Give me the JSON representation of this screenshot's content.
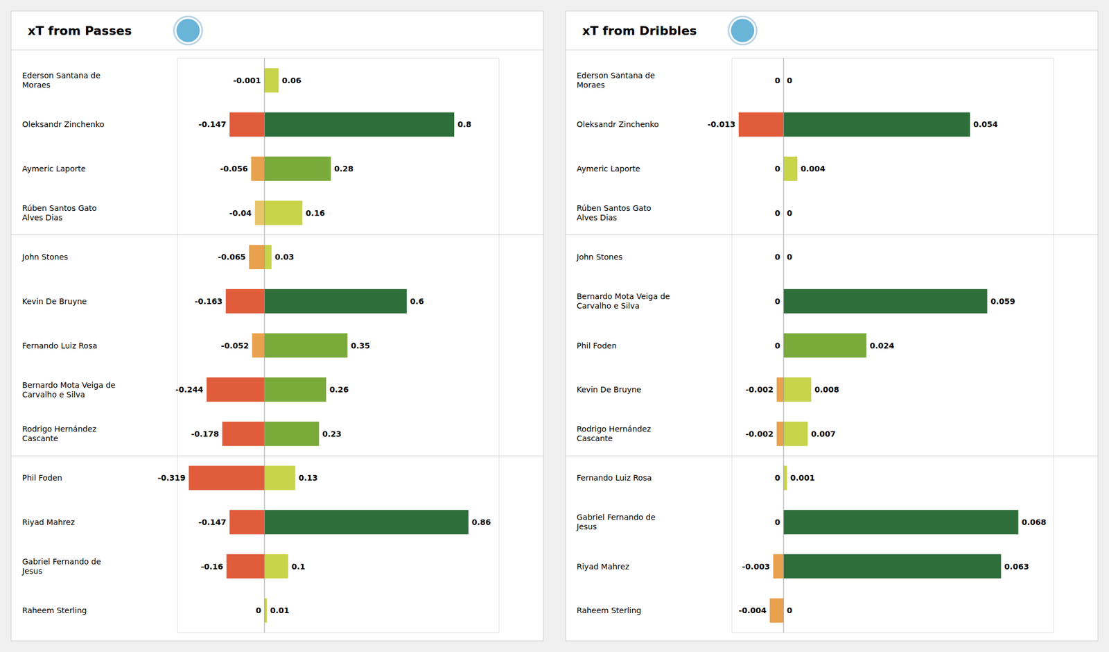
{
  "chart_data": [
    {
      "type": "bar",
      "orientation": "horizontal",
      "title": "xT from Passes",
      "categories": [
        "Ederson Santana de\nMoraes",
        "Oleksandr Zinchenko",
        "Aymeric  Laporte",
        "Rúben  Santos Gato\nAlves Dias",
        "John Stones",
        "Kevin De Bruyne",
        "Fernando Luiz Rosa",
        "Bernardo Mota Veiga de\nCarvalho e Silva",
        "Rodrigo Hernández\nCascante",
        "Phil Foden",
        "Riyad Mahrez",
        "Gabriel Fernando de\nJesus",
        "Raheem Sterling"
      ],
      "series": [
        {
          "values": [
            -0.001,
            -0.147,
            -0.056,
            -0.04,
            -0.065,
            -0.163,
            -0.052,
            -0.244,
            -0.178,
            -0.319,
            -0.147,
            -0.16,
            0
          ],
          "colors": [
            "#e8c46a",
            "#e05c3a",
            "#e8a14e",
            "#e8c46a",
            "#e8a14e",
            "#e05c3a",
            "#e8a14e",
            "#e05c3a",
            "#e05c3a",
            "#e05c3a",
            "#e05c3a",
            "#e05c3a",
            "#e8c46a"
          ]
        },
        {
          "values": [
            0.06,
            0.8,
            0.28,
            0.16,
            0.03,
            0.6,
            0.35,
            0.26,
            0.23,
            0.13,
            0.86,
            0.1,
            0.01
          ],
          "colors": [
            "#c8d44a",
            "#2d6e3a",
            "#7aaa3a",
            "#c8d44a",
            "#c8d44a",
            "#2d6e3a",
            "#7aaa3a",
            "#7aaa3a",
            "#7aaa3a",
            "#c8d44a",
            "#2d6e3a",
            "#c8d44a",
            "#c8d44a"
          ]
        }
      ],
      "xlim": [
        -0.36685,
        0.989
      ],
      "stacked": false,
      "data_labels": true,
      "tick_labels": false,
      "grid": false
    },
    {
      "type": "bar",
      "orientation": "horizontal",
      "title": "xT from Dribbles",
      "categories": [
        "Ederson Santana de\nMoraes",
        "Oleksandr Zinchenko",
        "Aymeric  Laporte",
        "Rúben  Santos Gato\nAlves Dias",
        "John Stones",
        "Bernardo Mota Veiga de\nCarvalho e Silva",
        "Phil Foden",
        "Kevin De Bruyne",
        "Rodrigo Hernández\nCascante",
        "Fernando Luiz Rosa",
        "Gabriel Fernando de\nJesus",
        "Riyad Mahrez",
        "Raheem Sterling"
      ],
      "series": [
        {
          "values": [
            0,
            -0.013,
            0,
            0,
            0,
            0,
            0,
            -0.002,
            -0.002,
            0,
            0,
            -0.003,
            -0.004
          ],
          "colors": [
            "#e8c46a",
            "#e05c3a",
            "#e8c46a",
            "#e8c46a",
            "#e8c46a",
            "#e8c46a",
            "#e8c46a",
            "#e8a14e",
            "#e8a14e",
            "#e8c46a",
            "#e8c46a",
            "#e8a14e",
            "#e8a14e"
          ]
        },
        {
          "values": [
            0,
            0.054,
            0.004,
            0,
            0,
            0.059,
            0.024,
            0.008,
            0.007,
            0.001,
            0.068,
            0.063,
            0
          ],
          "colors": [
            "#c8d44a",
            "#2d6e3a",
            "#c8d44a",
            "#c8d44a",
            "#c8d44a",
            "#2d6e3a",
            "#7aaa3a",
            "#c8d44a",
            "#c8d44a",
            "#c8d44a",
            "#2d6e3a",
            "#2d6e3a",
            "#c8d44a"
          ]
        }
      ],
      "xlim": [
        -0.01495,
        0.0782
      ],
      "stacked": false,
      "data_labels": true,
      "tick_labels": false,
      "grid": false
    }
  ]
}
